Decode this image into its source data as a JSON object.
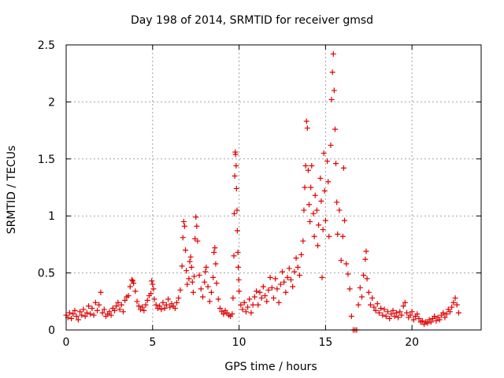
{
  "chart_data": {
    "type": "scatter",
    "title": "Day 198 of 2014, SRMTID for receiver gmsd",
    "xlabel": "GPS time / hours",
    "ylabel": "SRMTID / TECUs",
    "xlim": [
      0,
      24
    ],
    "ylim": [
      0,
      2.5
    ],
    "xticks": [
      "0",
      "5",
      "10",
      "15",
      "20"
    ],
    "yticks": [
      "0",
      "0.5",
      "1",
      "1.5",
      "2",
      "2.5"
    ],
    "grid": true,
    "marker": "+",
    "colors": {
      "series": "#e00000",
      "grid": "#a0a0a0",
      "axis": "#000000"
    },
    "series": [
      {
        "name": "SRMTID",
        "points": [
          [
            0.0,
            0.13
          ],
          [
            0.1,
            0.11
          ],
          [
            0.2,
            0.15
          ],
          [
            0.3,
            0.1
          ],
          [
            0.4,
            0.14
          ],
          [
            0.5,
            0.17
          ],
          [
            0.6,
            0.12
          ],
          [
            0.7,
            0.09
          ],
          [
            0.8,
            0.16
          ],
          [
            0.9,
            0.13
          ],
          [
            1.0,
            0.18
          ],
          [
            1.1,
            0.12
          ],
          [
            1.2,
            0.15
          ],
          [
            1.3,
            0.21
          ],
          [
            1.4,
            0.14
          ],
          [
            1.5,
            0.19
          ],
          [
            1.6,
            0.13
          ],
          [
            1.7,
            0.24
          ],
          [
            1.8,
            0.17
          ],
          [
            1.9,
            0.22
          ],
          [
            2.0,
            0.33
          ],
          [
            2.1,
            0.15
          ],
          [
            2.2,
            0.18
          ],
          [
            2.3,
            0.12
          ],
          [
            2.4,
            0.14
          ],
          [
            2.5,
            0.16
          ],
          [
            2.6,
            0.13
          ],
          [
            2.7,
            0.19
          ],
          [
            2.8,
            0.17
          ],
          [
            2.9,
            0.21
          ],
          [
            3.0,
            0.24
          ],
          [
            3.1,
            0.18
          ],
          [
            3.2,
            0.22
          ],
          [
            3.3,
            0.16
          ],
          [
            3.4,
            0.26
          ],
          [
            3.5,
            0.29
          ],
          [
            3.6,
            0.3
          ],
          [
            3.7,
            0.38
          ],
          [
            3.8,
            0.44
          ],
          [
            3.85,
            0.43
          ],
          [
            3.9,
            0.41
          ],
          [
            4.0,
            0.34
          ],
          [
            4.1,
            0.25
          ],
          [
            4.2,
            0.21
          ],
          [
            4.3,
            0.18
          ],
          [
            4.4,
            0.2
          ],
          [
            4.5,
            0.17
          ],
          [
            4.6,
            0.22
          ],
          [
            4.7,
            0.26
          ],
          [
            4.8,
            0.3
          ],
          [
            4.9,
            0.32
          ],
          [
            4.95,
            0.43
          ],
          [
            5.0,
            0.4
          ],
          [
            5.05,
            0.36
          ],
          [
            5.1,
            0.27
          ],
          [
            5.2,
            0.22
          ],
          [
            5.3,
            0.19
          ],
          [
            5.4,
            0.21
          ],
          [
            5.5,
            0.18
          ],
          [
            5.6,
            0.24
          ],
          [
            5.7,
            0.19
          ],
          [
            5.8,
            0.22
          ],
          [
            5.9,
            0.27
          ],
          [
            6.0,
            0.2
          ],
          [
            6.1,
            0.23
          ],
          [
            6.2,
            0.21
          ],
          [
            6.3,
            0.19
          ],
          [
            6.4,
            0.24
          ],
          [
            6.5,
            0.28
          ],
          [
            6.6,
            0.35
          ],
          [
            6.7,
            0.56
          ],
          [
            6.75,
            0.81
          ],
          [
            6.8,
            0.95
          ],
          [
            6.85,
            0.91
          ],
          [
            6.9,
            0.7
          ],
          [
            6.95,
            0.52
          ],
          [
            7.0,
            0.4
          ],
          [
            7.1,
            0.45
          ],
          [
            7.15,
            0.6
          ],
          [
            7.2,
            0.64
          ],
          [
            7.25,
            0.55
          ],
          [
            7.3,
            0.42
          ],
          [
            7.35,
            0.33
          ],
          [
            7.4,
            0.47
          ],
          [
            7.45,
            0.8
          ],
          [
            7.5,
            0.99
          ],
          [
            7.55,
            0.91
          ],
          [
            7.6,
            0.78
          ],
          [
            7.7,
            0.48
          ],
          [
            7.8,
            0.36
          ],
          [
            7.9,
            0.29
          ],
          [
            8.0,
            0.42
          ],
          [
            8.05,
            0.51
          ],
          [
            8.1,
            0.55
          ],
          [
            8.2,
            0.38
          ],
          [
            8.3,
            0.25
          ],
          [
            8.4,
            0.33
          ],
          [
            8.5,
            0.46
          ],
          [
            8.55,
            0.68
          ],
          [
            8.6,
            0.72
          ],
          [
            8.65,
            0.58
          ],
          [
            8.7,
            0.41
          ],
          [
            8.8,
            0.27
          ],
          [
            8.9,
            0.19
          ],
          [
            9.0,
            0.16
          ],
          [
            9.1,
            0.14
          ],
          [
            9.2,
            0.17
          ],
          [
            9.3,
            0.15
          ],
          [
            9.4,
            0.13
          ],
          [
            9.5,
            0.12
          ],
          [
            9.6,
            0.14
          ],
          [
            9.65,
            0.28
          ],
          [
            9.7,
            0.65
          ],
          [
            9.72,
            1.02
          ],
          [
            9.75,
            1.35
          ],
          [
            9.78,
            1.56
          ],
          [
            9.8,
            1.54
          ],
          [
            9.83,
            1.44
          ],
          [
            9.85,
            1.24
          ],
          [
            9.88,
            1.05
          ],
          [
            9.9,
            0.87
          ],
          [
            9.93,
            0.68
          ],
          [
            9.95,
            0.55
          ],
          [
            9.98,
            0.44
          ],
          [
            10.0,
            0.34
          ],
          [
            10.1,
            0.22
          ],
          [
            10.2,
            0.18
          ],
          [
            10.3,
            0.24
          ],
          [
            10.4,
            0.16
          ],
          [
            10.5,
            0.2
          ],
          [
            10.6,
            0.27
          ],
          [
            10.7,
            0.15
          ],
          [
            10.8,
            0.22
          ],
          [
            10.9,
            0.29
          ],
          [
            11.0,
            0.34
          ],
          [
            11.1,
            0.22
          ],
          [
            11.2,
            0.33
          ],
          [
            11.3,
            0.28
          ],
          [
            11.4,
            0.38
          ],
          [
            11.5,
            0.3
          ],
          [
            11.6,
            0.25
          ],
          [
            11.7,
            0.35
          ],
          [
            11.8,
            0.46
          ],
          [
            11.9,
            0.37
          ],
          [
            12.0,
            0.28
          ],
          [
            12.1,
            0.45
          ],
          [
            12.2,
            0.36
          ],
          [
            12.3,
            0.24
          ],
          [
            12.4,
            0.4
          ],
          [
            12.5,
            0.51
          ],
          [
            12.6,
            0.42
          ],
          [
            12.7,
            0.33
          ],
          [
            12.8,
            0.46
          ],
          [
            12.9,
            0.54
          ],
          [
            13.0,
            0.44
          ],
          [
            13.1,
            0.38
          ],
          [
            13.2,
            0.51
          ],
          [
            13.3,
            0.63
          ],
          [
            13.4,
            0.55
          ],
          [
            13.5,
            0.48
          ],
          [
            13.6,
            0.66
          ],
          [
            13.7,
            0.78
          ],
          [
            13.75,
            1.05
          ],
          [
            13.8,
            1.25
          ],
          [
            13.85,
            1.44
          ],
          [
            13.9,
            1.83
          ],
          [
            13.95,
            1.77
          ],
          [
            14.0,
            1.4
          ],
          [
            14.05,
            1.1
          ],
          [
            14.1,
            0.95
          ],
          [
            14.15,
            1.25
          ],
          [
            14.2,
            1.44
          ],
          [
            14.3,
            1.02
          ],
          [
            14.35,
            0.82
          ],
          [
            14.4,
            1.18
          ],
          [
            14.5,
            1.05
          ],
          [
            14.55,
            0.74
          ],
          [
            14.6,
            0.92
          ],
          [
            14.7,
            1.33
          ],
          [
            14.75,
            1.13
          ],
          [
            14.8,
            0.46
          ],
          [
            14.85,
            0.88
          ],
          [
            14.9,
            1.55
          ],
          [
            14.95,
            1.22
          ],
          [
            15.0,
            0.96
          ],
          [
            15.1,
            1.48
          ],
          [
            15.15,
            1.3
          ],
          [
            15.2,
            0.82
          ],
          [
            15.3,
            1.62
          ],
          [
            15.35,
            2.02
          ],
          [
            15.4,
            2.26
          ],
          [
            15.45,
            2.42
          ],
          [
            15.5,
            2.1
          ],
          [
            15.55,
            1.76
          ],
          [
            15.6,
            1.46
          ],
          [
            15.65,
            1.12
          ],
          [
            15.7,
            0.84
          ],
          [
            15.8,
            1.05
          ],
          [
            15.9,
            0.61
          ],
          [
            16.0,
            0.82
          ],
          [
            16.05,
            1.42
          ],
          [
            16.1,
            0.96
          ],
          [
            16.2,
            0.58
          ],
          [
            16.3,
            0.49
          ],
          [
            16.4,
            0.36
          ],
          [
            16.5,
            0.12
          ],
          [
            16.6,
            0.0
          ],
          [
            16.7,
            0.0
          ],
          [
            16.8,
            0.0
          ],
          [
            16.9,
            0.22
          ],
          [
            17.0,
            0.37
          ],
          [
            17.1,
            0.29
          ],
          [
            17.2,
            0.48
          ],
          [
            17.3,
            0.62
          ],
          [
            17.35,
            0.69
          ],
          [
            17.4,
            0.45
          ],
          [
            17.5,
            0.33
          ],
          [
            17.6,
            0.22
          ],
          [
            17.7,
            0.28
          ],
          [
            17.8,
            0.2
          ],
          [
            17.9,
            0.17
          ],
          [
            18.0,
            0.23
          ],
          [
            18.1,
            0.15
          ],
          [
            18.2,
            0.19
          ],
          [
            18.3,
            0.13
          ],
          [
            18.4,
            0.18
          ],
          [
            18.5,
            0.12
          ],
          [
            18.6,
            0.16
          ],
          [
            18.7,
            0.1
          ],
          [
            18.8,
            0.14
          ],
          [
            18.9,
            0.17
          ],
          [
            19.0,
            0.12
          ],
          [
            19.1,
            0.15
          ],
          [
            19.2,
            0.11
          ],
          [
            19.3,
            0.16
          ],
          [
            19.4,
            0.13
          ],
          [
            19.5,
            0.21
          ],
          [
            19.6,
            0.24
          ],
          [
            19.7,
            0.15
          ],
          [
            19.8,
            0.11
          ],
          [
            19.9,
            0.13
          ],
          [
            20.0,
            0.16
          ],
          [
            20.1,
            0.09
          ],
          [
            20.2,
            0.12
          ],
          [
            20.3,
            0.14
          ],
          [
            20.4,
            0.1
          ],
          [
            20.5,
            0.07
          ],
          [
            20.6,
            0.08
          ],
          [
            20.7,
            0.05
          ],
          [
            20.8,
            0.07
          ],
          [
            20.9,
            0.06
          ],
          [
            21.0,
            0.09
          ],
          [
            21.1,
            0.07
          ],
          [
            21.2,
            0.1
          ],
          [
            21.3,
            0.12
          ],
          [
            21.4,
            0.08
          ],
          [
            21.5,
            0.11
          ],
          [
            21.6,
            0.09
          ],
          [
            21.7,
            0.13
          ],
          [
            21.8,
            0.15
          ],
          [
            21.9,
            0.11
          ],
          [
            22.0,
            0.14
          ],
          [
            22.1,
            0.18
          ],
          [
            22.2,
            0.16
          ],
          [
            22.3,
            0.2
          ],
          [
            22.4,
            0.24
          ],
          [
            22.5,
            0.28
          ],
          [
            22.6,
            0.22
          ],
          [
            22.7,
            0.15
          ]
        ]
      }
    ]
  }
}
